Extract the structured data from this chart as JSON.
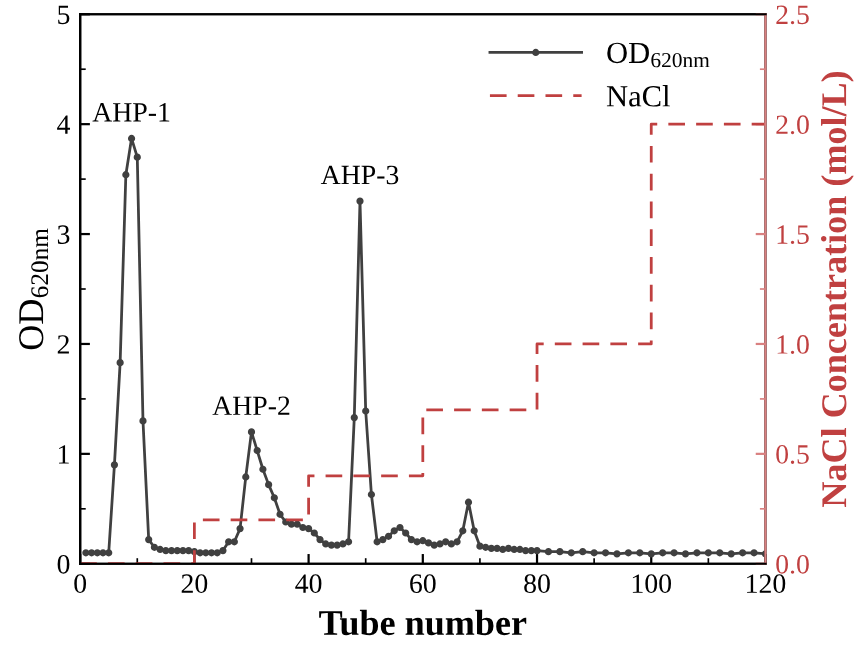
{
  "chart_data": {
    "type": "line",
    "xlabel": "Tube number",
    "ylabel": "OD$_{620nm}$",
    "y2label": "NaCl Concentration (mol/L)",
    "xlim": [
      0,
      120
    ],
    "xticks": [
      0,
      20,
      40,
      60,
      80,
      100,
      120
    ],
    "ylim": [
      0,
      5
    ],
    "yticks": [
      0,
      1,
      2,
      3,
      4,
      5
    ],
    "y2lim": [
      0,
      2.5
    ],
    "y2ticks": [
      {
        "value": 0,
        "label": "0.0"
      },
      {
        "value": 0.5,
        "label": "0.5"
      },
      {
        "value": 1,
        "label": "1.0"
      },
      {
        "value": 1.5,
        "label": "1.5"
      },
      {
        "value": 2,
        "label": "2.0"
      },
      {
        "value": 2.5,
        "label": "2.5"
      }
    ],
    "legend": "top right",
    "grid": false,
    "series": [
      {
        "name": "OD$_{620nm}$",
        "color": "#404040",
        "marker": "circle",
        "line_style": "solid",
        "x": [
          1,
          2,
          3,
          4,
          5,
          6,
          7,
          8,
          9,
          10,
          11,
          12,
          13,
          14,
          15,
          16,
          17,
          18,
          19,
          20,
          21,
          22,
          23,
          24,
          25,
          26,
          27,
          28,
          29,
          30,
          31,
          32,
          33,
          34,
          35,
          36,
          37,
          38,
          39,
          40,
          41,
          42,
          43,
          44,
          45,
          46,
          47,
          48,
          49,
          50,
          51,
          52,
          53,
          54,
          55,
          56,
          57,
          58,
          59,
          60,
          61,
          62,
          63,
          64,
          65,
          66,
          67,
          68,
          69,
          70,
          71,
          72,
          73,
          74,
          75,
          76,
          77,
          78,
          79,
          80,
          82,
          84,
          86,
          88,
          90,
          92,
          94,
          96,
          98,
          100,
          102,
          104,
          106,
          108,
          110,
          112,
          114,
          116,
          118,
          120
        ],
        "values": [
          0.1,
          0.1,
          0.1,
          0.1,
          0.1,
          0.9,
          1.83,
          3.54,
          3.87,
          3.7,
          1.3,
          0.22,
          0.15,
          0.13,
          0.12,
          0.12,
          0.12,
          0.12,
          0.12,
          0.11,
          0.1,
          0.1,
          0.1,
          0.1,
          0.12,
          0.2,
          0.2,
          0.32,
          0.79,
          1.2,
          1.03,
          0.86,
          0.72,
          0.6,
          0.45,
          0.38,
          0.36,
          0.36,
          0.33,
          0.32,
          0.28,
          0.22,
          0.18,
          0.17,
          0.17,
          0.18,
          0.2,
          1.33,
          3.3,
          1.39,
          0.63,
          0.2,
          0.22,
          0.25,
          0.3,
          0.33,
          0.28,
          0.22,
          0.2,
          0.21,
          0.19,
          0.17,
          0.18,
          0.2,
          0.18,
          0.2,
          0.3,
          0.56,
          0.3,
          0.16,
          0.15,
          0.14,
          0.14,
          0.13,
          0.14,
          0.13,
          0.13,
          0.12,
          0.12,
          0.12,
          0.11,
          0.11,
          0.1,
          0.11,
          0.1,
          0.1,
          0.09,
          0.1,
          0.1,
          0.09,
          0.1,
          0.1,
          0.09,
          0.1,
          0.1,
          0.1,
          0.09,
          0.1,
          0.1,
          0.09
        ]
      },
      {
        "name": "NaCl",
        "color": "#c04040",
        "type": "step",
        "axis": "y2",
        "marker": "none",
        "line_style": "dashed",
        "x": [
          0,
          20,
          40,
          60,
          80,
          100,
          120
        ],
        "values": [
          0,
          0.2,
          0.4,
          0.7,
          1.0,
          2.0,
          2.0
        ]
      }
    ],
    "annotations": [
      {
        "text": "AHP-1",
        "x": 9,
        "y": 3.87
      },
      {
        "text": "AHP-2",
        "x": 30,
        "y": 1.2
      },
      {
        "text": "AHP-3",
        "x": 49,
        "y": 3.3
      }
    ]
  }
}
